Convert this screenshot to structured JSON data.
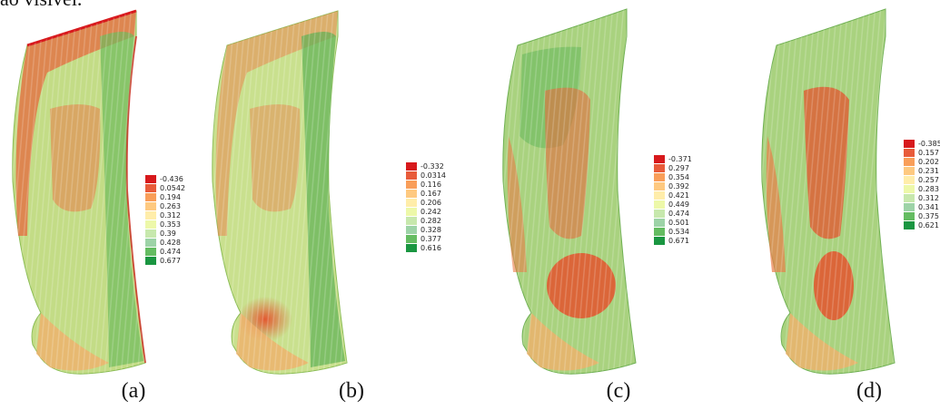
{
  "top_text": "ão visível.",
  "panels": [
    {
      "caption": "(a)",
      "legend": [
        "-0.436",
        "0.0542",
        "0.194",
        "0.263",
        "0.312",
        "0.353",
        "0.39",
        "0.428",
        "0.474",
        "0.677"
      ]
    },
    {
      "caption": "(b)",
      "legend": [
        "-0.332",
        "0.0314",
        "0.116",
        "0.167",
        "0.206",
        "0.242",
        "0.282",
        "0.328",
        "0.377",
        "0.616"
      ]
    },
    {
      "caption": "(c)",
      "legend": [
        "-0.371",
        "0.297",
        "0.354",
        "0.392",
        "0.421",
        "0.449",
        "0.474",
        "0.501",
        "0.534",
        "0.671"
      ]
    },
    {
      "caption": "(d)",
      "legend": [
        "-0.385",
        "0.157",
        "0.202",
        "0.231",
        "0.257",
        "0.283",
        "0.312",
        "0.341",
        "0.375",
        "0.621"
      ]
    }
  ],
  "legend_colors": [
    "#d7191c",
    "#e85b3a",
    "#f99e59",
    "#fec980",
    "#ffedaa",
    "#edf8a9",
    "#c7e8ad",
    "#9dd3a7",
    "#64bc61",
    "#1a9641"
  ]
}
